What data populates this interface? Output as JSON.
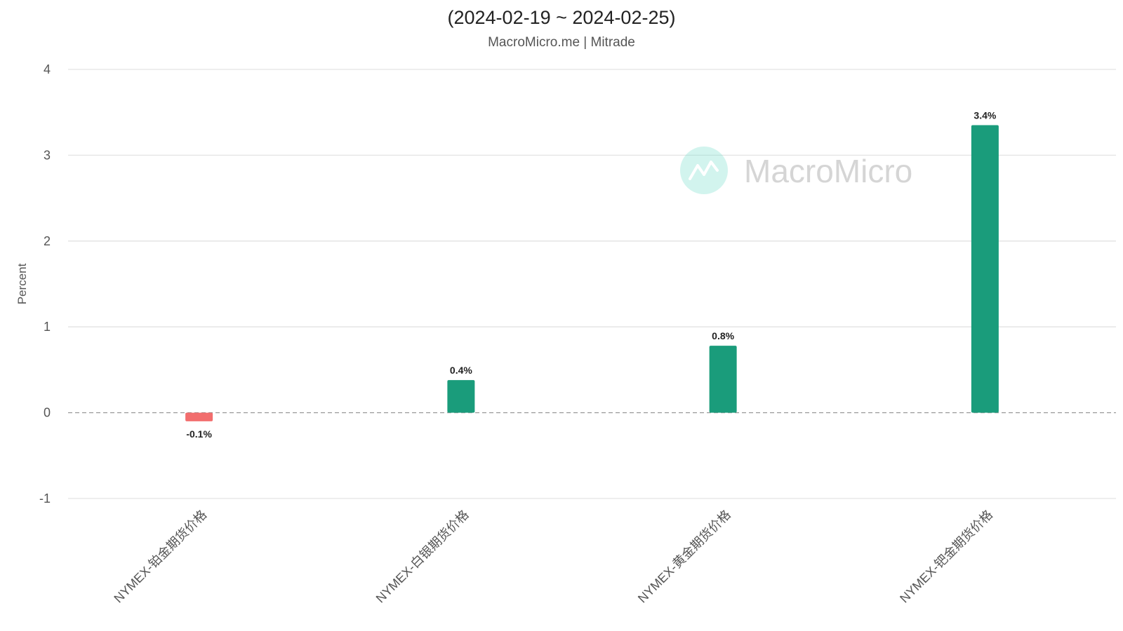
{
  "chart_data": {
    "type": "bar",
    "title": "(2024-02-19 ~ 2024-02-25)",
    "subtitle": "MacroMicro.me | Mitrade",
    "ylabel": "Percent",
    "xlabel": "",
    "ylim": [
      -1,
      4
    ],
    "yticks": [
      "4",
      "3",
      "2",
      "1",
      "0",
      "-1"
    ],
    "categories": [
      "NYMEX-铂金期货价格",
      "NYMEX-白银期货价格",
      "NYMEX-黄金期货价格",
      "NYMEX-钯金期货价格"
    ],
    "values": [
      -0.1,
      0.38,
      0.78,
      3.35
    ],
    "data_labels": [
      "-0.1%",
      "0.4%",
      "0.8%",
      "3.4%"
    ],
    "grid": true,
    "colors": {
      "positive": "#1a9c7b",
      "negative": "#f26d6d",
      "grid": "#e3e3e3",
      "zero_line": "#999999"
    },
    "watermark": {
      "text": "MacroMicro",
      "icon": "macromicro-logo-icon"
    }
  }
}
